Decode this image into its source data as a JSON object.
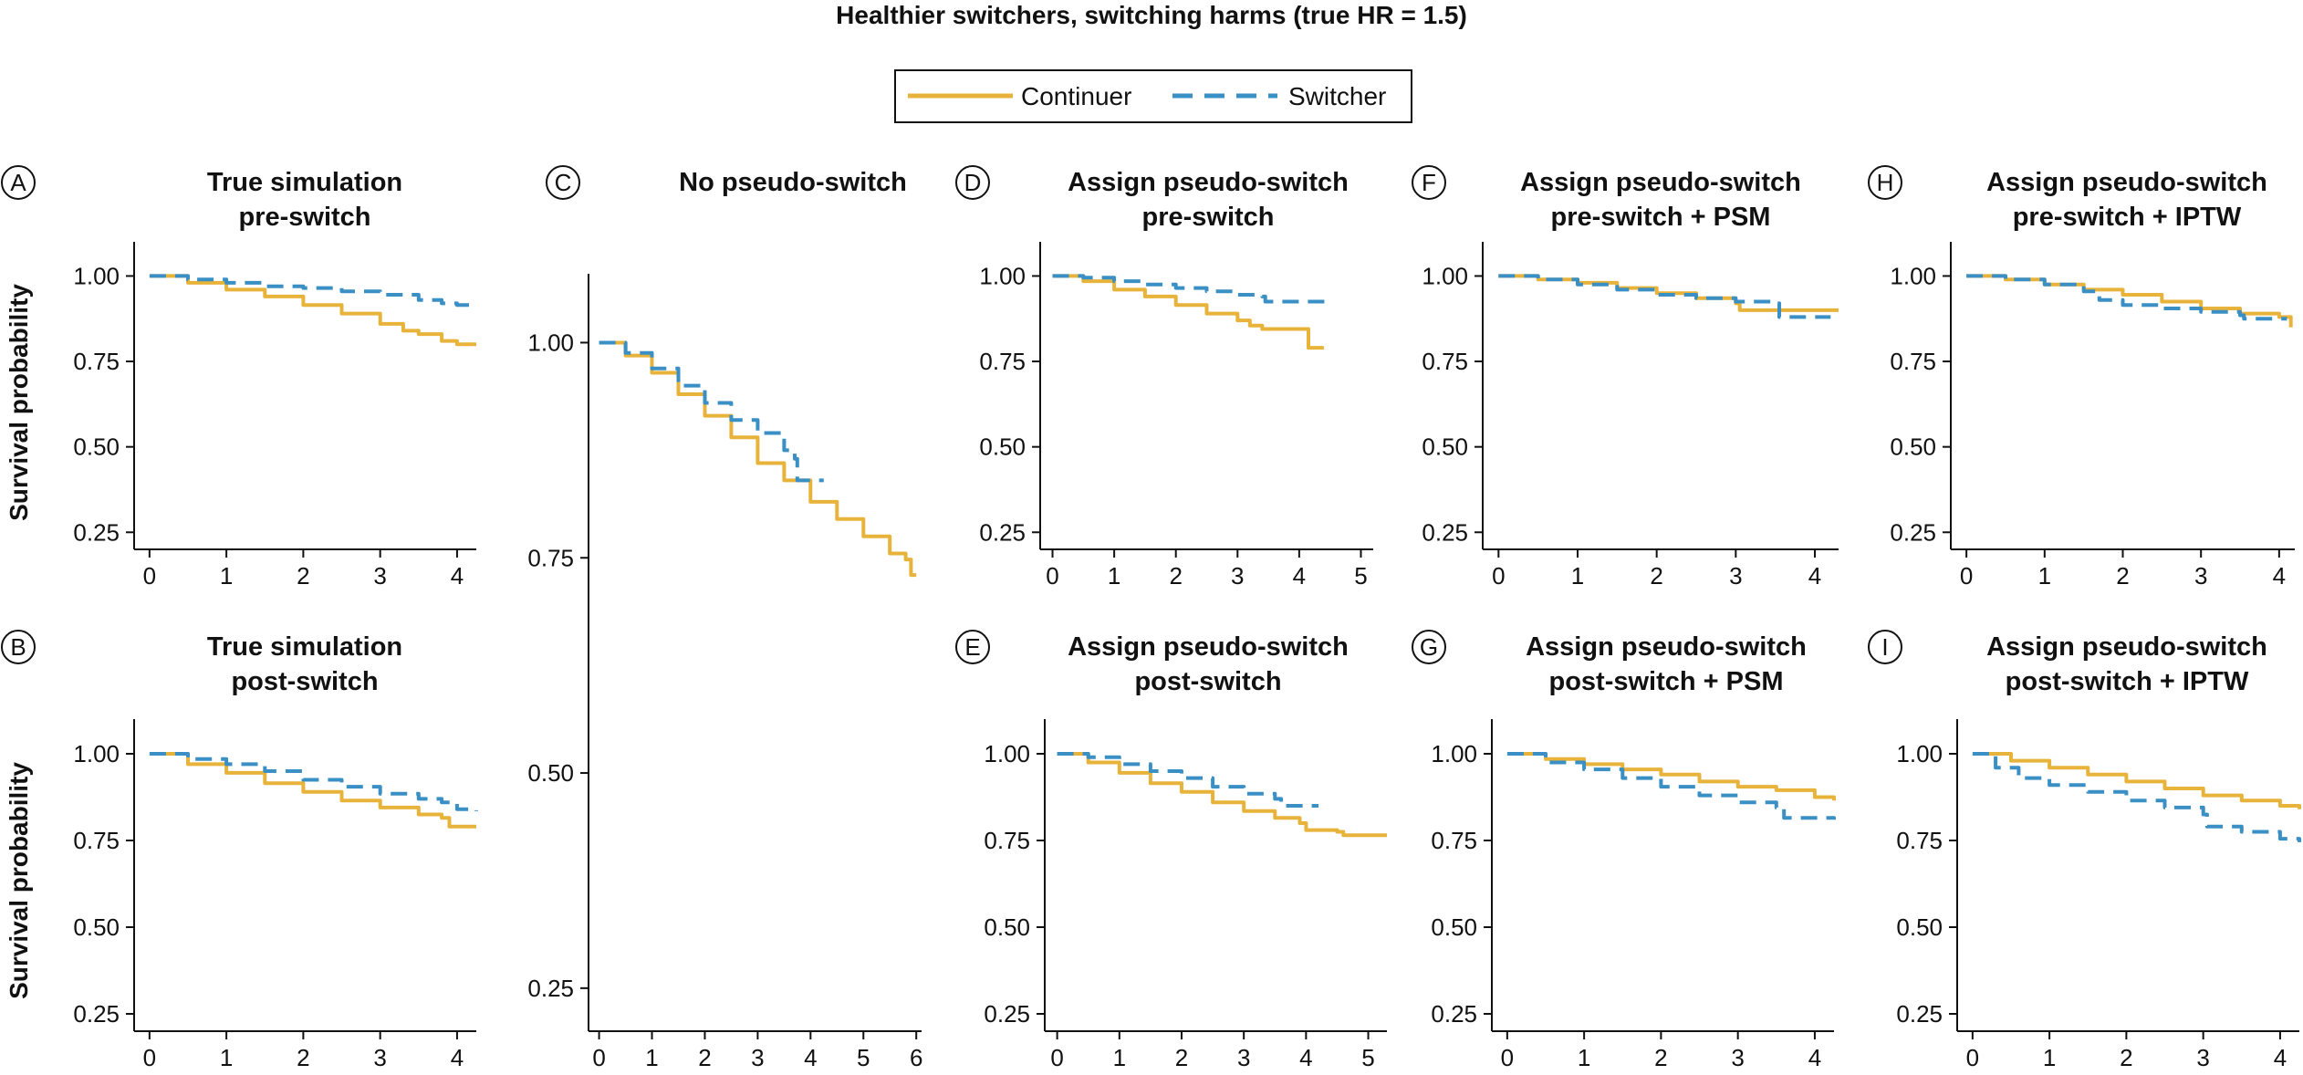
{
  "figure_title": "Healthier switchers, switching harms (true HR = 1.5)",
  "legend": [
    {
      "name": "Continuer",
      "color": "#e8b33a",
      "dash": "solid"
    },
    {
      "name": "Switcher",
      "color": "#3a8fc4",
      "dash": "dashed"
    }
  ],
  "y_axis_label": "Survival probability",
  "chart_data": [
    {
      "id": "A",
      "type": "line",
      "title": [
        "True simulation",
        "pre-switch"
      ],
      "ylabel": "Survival probability",
      "xlim": [
        -0.2,
        4.25
      ],
      "ylim": [
        0.2,
        1.1
      ],
      "xticks": [
        0,
        1,
        2,
        3,
        4
      ],
      "yticks": [
        0.25,
        0.5,
        0.75,
        1.0
      ],
      "series": [
        {
          "name": "Continuer",
          "x": [
            0,
            0.5,
            1,
            1.5,
            2,
            2.5,
            3,
            3.3,
            3.5,
            3.8,
            4,
            4.25
          ],
          "y": [
            1.0,
            0.98,
            0.96,
            0.94,
            0.915,
            0.89,
            0.86,
            0.84,
            0.83,
            0.81,
            0.8,
            0.8
          ]
        },
        {
          "name": "Switcher",
          "x": [
            0,
            0.5,
            1,
            1.5,
            2,
            2.5,
            3,
            3.5,
            3.8,
            4,
            4.25
          ],
          "y": [
            1.0,
            0.99,
            0.98,
            0.97,
            0.965,
            0.955,
            0.945,
            0.93,
            0.92,
            0.915,
            0.915
          ]
        }
      ]
    },
    {
      "id": "B",
      "type": "line",
      "title": [
        "True simulation",
        "post-switch"
      ],
      "ylabel": "Survival probability",
      "xlim": [
        -0.2,
        4.25
      ],
      "ylim": [
        0.2,
        1.1
      ],
      "xticks": [
        0,
        1,
        2,
        3,
        4
      ],
      "yticks": [
        0.25,
        0.5,
        0.75,
        1.0
      ],
      "series": [
        {
          "name": "Continuer",
          "x": [
            0,
            0.5,
            1,
            1.5,
            2,
            2.5,
            3,
            3.5,
            3.8,
            3.9,
            4.25
          ],
          "y": [
            1.0,
            0.97,
            0.945,
            0.915,
            0.89,
            0.865,
            0.845,
            0.825,
            0.815,
            0.79,
            0.79
          ]
        },
        {
          "name": "Switcher",
          "x": [
            0,
            0.5,
            1,
            1.5,
            2,
            2.5,
            3,
            3.5,
            3.8,
            4,
            4.25
          ],
          "y": [
            1.0,
            0.985,
            0.97,
            0.95,
            0.925,
            0.905,
            0.885,
            0.87,
            0.86,
            0.84,
            0.835
          ]
        }
      ]
    },
    {
      "id": "C",
      "type": "line",
      "title": [
        "No pseudo-switch"
      ],
      "ylabel": "",
      "xlim": [
        -0.2,
        6.1
      ],
      "ylim": [
        0.2,
        1.08
      ],
      "xticks": [
        0,
        1,
        2,
        3,
        4,
        5,
        6
      ],
      "yticks": [
        0.25,
        0.5,
        0.75,
        1.0
      ],
      "series": [
        {
          "name": "Continuer",
          "x": [
            0,
            0.5,
            1,
            1.5,
            2,
            2.5,
            3,
            3.5,
            4,
            4.5,
            5,
            5.5,
            5.8,
            5.9,
            6
          ],
          "y": [
            1.0,
            0.985,
            0.965,
            0.94,
            0.915,
            0.89,
            0.86,
            0.84,
            0.815,
            0.795,
            0.775,
            0.755,
            0.748,
            0.73,
            0.73
          ]
        },
        {
          "name": "Switcher",
          "x": [
            0,
            0.5,
            1,
            1.5,
            2,
            2.5,
            3,
            3.5,
            3.7,
            3.75,
            4.25
          ],
          "y": [
            1.0,
            0.988,
            0.97,
            0.95,
            0.93,
            0.91,
            0.895,
            0.875,
            0.865,
            0.84,
            0.84
          ]
        }
      ]
    },
    {
      "id": "D",
      "type": "line",
      "title": [
        "Assign pseudo-switch",
        "pre-switch"
      ],
      "ylabel": "",
      "xlim": [
        -0.2,
        5.2
      ],
      "ylim": [
        0.2,
        1.1
      ],
      "xticks": [
        0,
        1,
        2,
        3,
        4,
        5
      ],
      "yticks": [
        0.25,
        0.5,
        0.75,
        1.0
      ],
      "series": [
        {
          "name": "Continuer",
          "x": [
            0,
            0.5,
            1,
            1.5,
            2,
            2.5,
            3,
            3.2,
            3.4,
            4.1,
            4.15,
            4.4
          ],
          "y": [
            1.0,
            0.985,
            0.96,
            0.94,
            0.915,
            0.89,
            0.87,
            0.855,
            0.845,
            0.845,
            0.79,
            0.79
          ]
        },
        {
          "name": "Switcher",
          "x": [
            0,
            0.5,
            1,
            1.5,
            2,
            2.5,
            3,
            3.4,
            3.45,
            4.5
          ],
          "y": [
            1.0,
            0.995,
            0.985,
            0.975,
            0.965,
            0.955,
            0.945,
            0.94,
            0.925,
            0.925
          ]
        }
      ]
    },
    {
      "id": "E",
      "type": "line",
      "title": [
        "Assign pseudo-switch",
        "post-switch"
      ],
      "ylabel": "",
      "xlim": [
        -0.2,
        5.3
      ],
      "ylim": [
        0.2,
        1.1
      ],
      "xticks": [
        0,
        1,
        2,
        3,
        4,
        5
      ],
      "yticks": [
        0.25,
        0.5,
        0.75,
        1.0
      ],
      "series": [
        {
          "name": "Continuer",
          "x": [
            0,
            0.5,
            1,
            1.5,
            2,
            2.5,
            3,
            3.5,
            3.9,
            4.0,
            4.5,
            4.6,
            5.3
          ],
          "y": [
            1.0,
            0.975,
            0.945,
            0.915,
            0.89,
            0.86,
            0.835,
            0.815,
            0.8,
            0.78,
            0.775,
            0.765,
            0.765
          ]
        },
        {
          "name": "Switcher",
          "x": [
            0,
            0.5,
            1,
            1.5,
            2,
            2.5,
            3,
            3.5,
            3.6,
            4.2
          ],
          "y": [
            1.0,
            0.99,
            0.97,
            0.95,
            0.93,
            0.905,
            0.885,
            0.87,
            0.85,
            0.85
          ]
        }
      ]
    },
    {
      "id": "F",
      "type": "line",
      "title": [
        "Assign pseudo-switch",
        "pre-switch + PSM"
      ],
      "ylabel": "",
      "xlim": [
        -0.2,
        4.3
      ],
      "ylim": [
        0.2,
        1.1
      ],
      "xticks": [
        0,
        1,
        2,
        3,
        4
      ],
      "yticks": [
        0.25,
        0.5,
        0.75,
        1.0
      ],
      "series": [
        {
          "name": "Continuer",
          "x": [
            0,
            0.5,
            1,
            1.5,
            2,
            2.5,
            3,
            3.05,
            4.3
          ],
          "y": [
            1.0,
            0.99,
            0.98,
            0.965,
            0.95,
            0.935,
            0.92,
            0.9,
            0.9
          ]
        },
        {
          "name": "Switcher",
          "x": [
            0,
            0.5,
            1,
            1.5,
            2,
            2.5,
            3,
            3.5,
            3.55,
            4.2
          ],
          "y": [
            1.0,
            0.99,
            0.975,
            0.96,
            0.945,
            0.935,
            0.925,
            0.92,
            0.88,
            0.88
          ]
        }
      ]
    },
    {
      "id": "G",
      "type": "line",
      "title": [
        "Assign pseudo-switch",
        "post-switch + PSM"
      ],
      "ylabel": "",
      "xlim": [
        -0.2,
        4.25
      ],
      "ylim": [
        0.2,
        1.1
      ],
      "xticks": [
        0,
        1,
        2,
        3,
        4
      ],
      "yticks": [
        0.25,
        0.5,
        0.75,
        1.0
      ],
      "series": [
        {
          "name": "Continuer",
          "x": [
            0,
            0.5,
            1,
            1.5,
            2,
            2.5,
            3,
            3.5,
            4,
            4.25
          ],
          "y": [
            1.0,
            0.985,
            0.97,
            0.955,
            0.94,
            0.92,
            0.905,
            0.895,
            0.875,
            0.865
          ]
        },
        {
          "name": "Switcher",
          "x": [
            0,
            0.5,
            1,
            1.5,
            2,
            2.5,
            3,
            3.5,
            3.6,
            4.25
          ],
          "y": [
            1.0,
            0.975,
            0.955,
            0.93,
            0.905,
            0.88,
            0.86,
            0.845,
            0.815,
            0.81
          ]
        }
      ]
    },
    {
      "id": "H",
      "type": "line",
      "title": [
        "Assign pseudo-switch",
        "pre-switch + IPTW"
      ],
      "ylabel": "",
      "xlim": [
        -0.2,
        4.2
      ],
      "ylim": [
        0.2,
        1.1
      ],
      "xticks": [
        0,
        1,
        2,
        3,
        4
      ],
      "yticks": [
        0.25,
        0.5,
        0.75,
        1.0
      ],
      "series": [
        {
          "name": "Continuer",
          "x": [
            0,
            0.5,
            1,
            1.5,
            2,
            2.5,
            3,
            3.5,
            4,
            4.1,
            4.15
          ],
          "y": [
            1.0,
            0.99,
            0.975,
            0.96,
            0.945,
            0.925,
            0.905,
            0.89,
            0.88,
            0.88,
            0.85
          ]
        },
        {
          "name": "Switcher",
          "x": [
            0,
            0.5,
            1,
            1.5,
            1.7,
            2,
            2.5,
            3,
            3.5,
            3.55,
            4.1
          ],
          "y": [
            1.0,
            0.99,
            0.975,
            0.955,
            0.93,
            0.915,
            0.905,
            0.895,
            0.885,
            0.875,
            0.875
          ]
        }
      ]
    },
    {
      "id": "I",
      "type": "line",
      "title": [
        "Assign pseudo-switch",
        "post-switch + IPTW"
      ],
      "ylabel": "",
      "xlim": [
        -0.2,
        4.25
      ],
      "ylim": [
        0.2,
        1.1
      ],
      "xticks": [
        0,
        1,
        2,
        3,
        4
      ],
      "yticks": [
        0.25,
        0.5,
        0.75,
        1.0
      ],
      "series": [
        {
          "name": "Continuer",
          "x": [
            0,
            0.5,
            1,
            1.5,
            2,
            2.5,
            3,
            3.5,
            4,
            4.25
          ],
          "y": [
            1.0,
            0.98,
            0.96,
            0.94,
            0.92,
            0.9,
            0.88,
            0.865,
            0.85,
            0.84
          ]
        },
        {
          "name": "Switcher",
          "x": [
            0,
            0.3,
            0.6,
            1,
            1.5,
            2,
            2.5,
            3,
            3.05,
            3.5,
            4,
            4.25
          ],
          "y": [
            1.0,
            0.96,
            0.93,
            0.91,
            0.89,
            0.865,
            0.845,
            0.825,
            0.79,
            0.775,
            0.755,
            0.745
          ]
        }
      ]
    }
  ]
}
